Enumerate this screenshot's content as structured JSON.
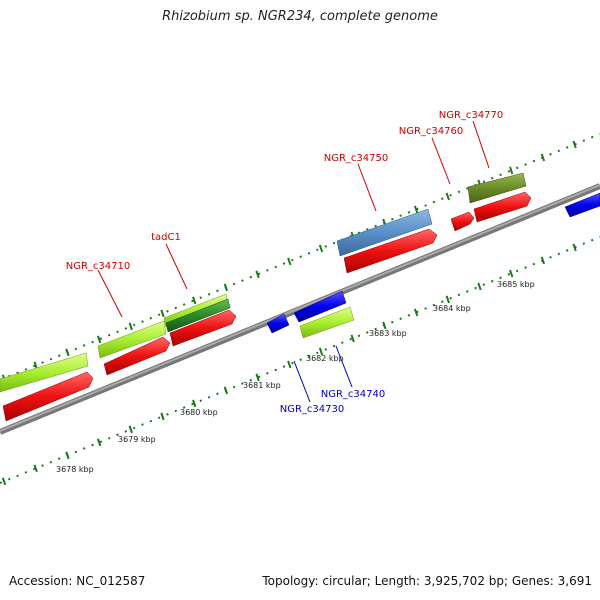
{
  "title": "Rhizobium sp. NGR234, complete genome",
  "footer": {
    "accession": "Accession: NC_012587",
    "stats": "Topology: circular; Length: 3,925,702 bp; Genes: 3,691"
  },
  "colors": {
    "backbone": "#888888",
    "ticks": "#1a7a1a",
    "forward_label": "#cc0000",
    "reverse_label": "#0000bb",
    "cds": "#ee1111",
    "rrna_like": "#0000ee",
    "gene_lime": "#aaee33",
    "gene_dark_green": "#2a8a2a",
    "gene_steel_blue": "#5a8fc8",
    "gene_olive": "#6b8a28"
  },
  "scale_labels": [
    "3678 kbp",
    "3679 kbp",
    "3680 kbp",
    "3681 kbp",
    "3682 kbp",
    "3683 kbp",
    "3684 kbp",
    "3685 kbp"
  ],
  "gene_labels": {
    "forward": [
      "NGR_c34710",
      "tadC1",
      "NGR_c34750",
      "NGR_c34760",
      "NGR_c34770"
    ],
    "reverse": [
      "NGR_c34730",
      "NGR_c34740"
    ]
  }
}
